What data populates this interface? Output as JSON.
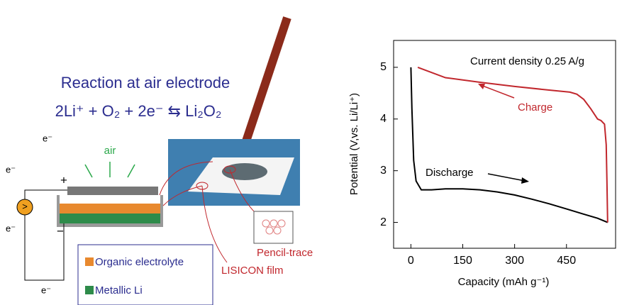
{
  "diagram": {
    "reaction_title": "Reaction at  air electrode",
    "reaction_equation": "2Li⁺ + O₂ + 2e⁻ ⇆ Li₂O₂",
    "air_label": "air",
    "electron_labels": [
      "e⁻",
      "e⁻",
      "e⁻",
      "e⁻"
    ],
    "plus_label": "+",
    "minus_label": "−",
    "meter_label": ">",
    "legend": [
      "Organic electrolyte",
      "Metallic Li"
    ],
    "pencil_trace_label": "Pencil-trace",
    "lisicon_label": "LISICON film"
  },
  "chart_data": {
    "type": "line",
    "xlabel": "Capacity (mAh g⁻¹)",
    "ylabel": "Potential (V,vs. Li/Li⁺)",
    "xlim": [
      -50,
      592
    ],
    "ylim": [
      1.5,
      5.52
    ],
    "xticks": [
      0,
      150,
      300,
      450
    ],
    "yticks": [
      2,
      3,
      4,
      5
    ],
    "annotations": [
      "Current density 0.25 A/g",
      "Charge",
      "Discharge"
    ],
    "series": [
      {
        "name": "Discharge",
        "color": "#000000",
        "x": [
          0,
          3,
          8,
          15,
          30,
          60,
          100,
          150,
          200,
          250,
          300,
          350,
          400,
          450,
          500,
          540,
          569
        ],
        "values": [
          5.0,
          4.2,
          3.2,
          2.8,
          2.63,
          2.63,
          2.65,
          2.65,
          2.63,
          2.59,
          2.53,
          2.45,
          2.36,
          2.26,
          2.16,
          2.08,
          2.0
        ]
      },
      {
        "name": "Charge",
        "color": "#c1272d",
        "x": [
          569,
          567,
          565,
          560,
          550,
          540,
          520,
          500,
          480,
          460,
          400,
          300,
          200,
          100,
          20
        ],
        "values": [
          2.0,
          2.8,
          3.5,
          3.9,
          3.97,
          4.0,
          4.2,
          4.38,
          4.48,
          4.52,
          4.56,
          4.63,
          4.71,
          4.8,
          5.0
        ]
      }
    ]
  }
}
